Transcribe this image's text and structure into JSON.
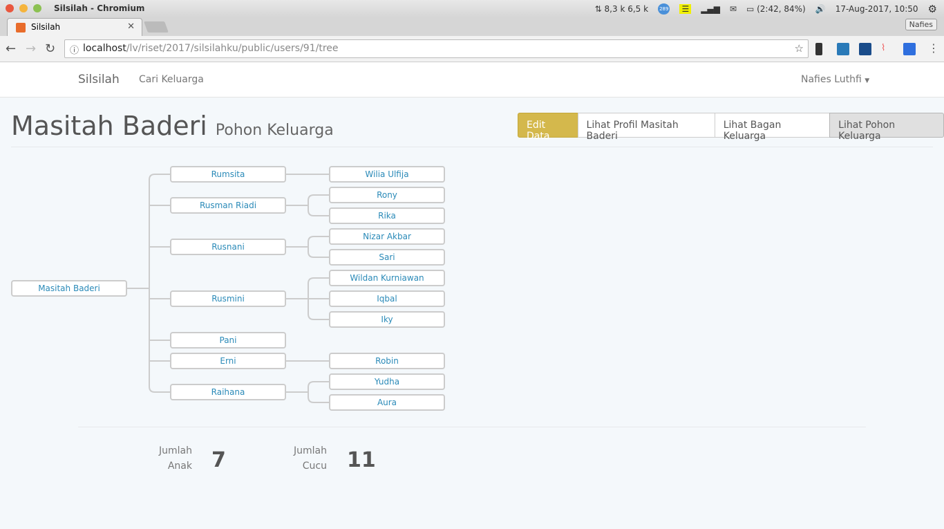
{
  "os": {
    "window_title": "Silsilah - Chromium",
    "net": "8,3 k 6,5 k",
    "badge": "289",
    "battery": "(2:42, 84%)",
    "datetime": "17-Aug-2017, 10:50",
    "profile": "Nafies"
  },
  "browser": {
    "tab_title": "Silsilah",
    "url_host": "localhost",
    "url_path": "/lv/riset/2017/silsilahku/public/users/91/tree"
  },
  "navbar": {
    "brand": "Silsilah",
    "link": "Cari Keluarga",
    "user": "Nafies Luthfi"
  },
  "header": {
    "title": "Masitah Baderi",
    "subtitle": "Pohon Keluarga"
  },
  "actions": {
    "edit": "Edit Data",
    "profile": "Lihat Profil Masitah Baderi",
    "chart": "Lihat Bagan Keluarga",
    "tree": "Lihat Pohon Keluarga"
  },
  "tree": {
    "name": "Masitah Baderi",
    "children": [
      {
        "name": "Rumsita",
        "children": [
          "Wilia Ulfija"
        ]
      },
      {
        "name": "Rusman Riadi",
        "children": [
          "Rony",
          "Rika"
        ]
      },
      {
        "name": "Rusnani",
        "children": [
          "Nizar Akbar",
          "Sari"
        ]
      },
      {
        "name": "Rusmini",
        "children": [
          "Wildan Kurniawan",
          "Iqbal",
          "Iky"
        ]
      },
      {
        "name": "Pani",
        "children": []
      },
      {
        "name": "Erni",
        "children": [
          "Robin"
        ]
      },
      {
        "name": "Raihana",
        "children": [
          "Yudha",
          "Aura"
        ]
      }
    ]
  },
  "stats": {
    "children_label_1": "Jumlah",
    "children_label_2": "Anak",
    "children_count": "7",
    "grandchildren_label_1": "Jumlah",
    "grandchildren_label_2": "Cucu",
    "grandchildren_count": "11"
  }
}
